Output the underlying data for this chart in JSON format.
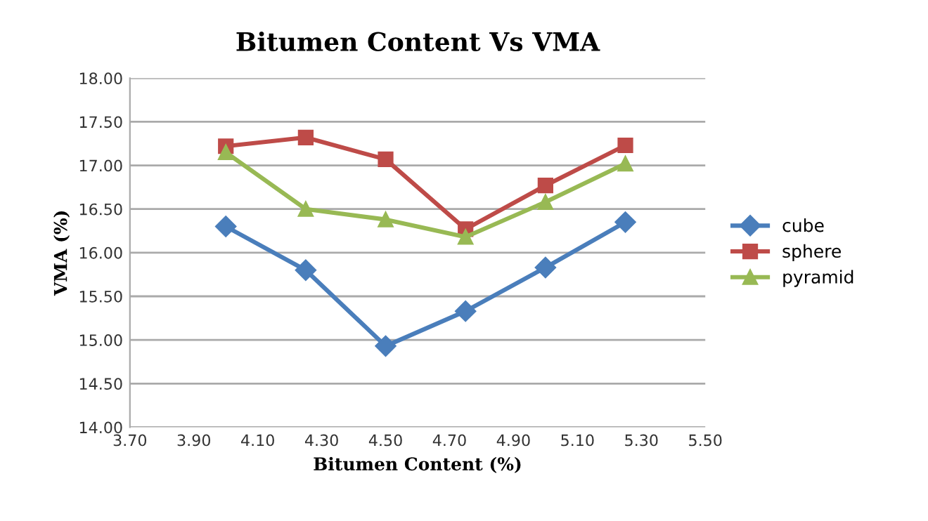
{
  "chart_data": {
    "type": "line",
    "title": "Bitumen Content Vs VMA",
    "xlabel": "Bitumen Content (%)",
    "ylabel": "VMA (%)",
    "x": [
      4.0,
      4.25,
      4.5,
      4.75,
      5.0,
      5.25
    ],
    "series": [
      {
        "name": "cube",
        "color": "#4a7ebb",
        "marker": "diamond",
        "values": [
          16.3,
          15.8,
          14.93,
          15.33,
          15.83,
          16.35
        ]
      },
      {
        "name": "sphere",
        "color": "#be4b48",
        "marker": "square",
        "values": [
          17.22,
          17.32,
          17.07,
          16.27,
          16.77,
          17.23
        ]
      },
      {
        "name": "pyramid",
        "color": "#98b954",
        "marker": "triangle",
        "values": [
          17.15,
          16.5,
          16.38,
          16.18,
          16.58,
          17.02
        ]
      }
    ],
    "xlim": [
      3.7,
      5.5
    ],
    "xticks": [
      {
        "value": 3.7,
        "label": "3.70"
      },
      {
        "value": 3.9,
        "label": "3.90"
      },
      {
        "value": 4.1,
        "label": "4.10"
      },
      {
        "value": 4.3,
        "label": "4.30"
      },
      {
        "value": 4.5,
        "label": "4.50"
      },
      {
        "value": 4.7,
        "label": "4.70"
      },
      {
        "value": 4.9,
        "label": "4.90"
      },
      {
        "value": 5.1,
        "label": "5.10"
      },
      {
        "value": 5.3,
        "label": "5.30"
      },
      {
        "value": 5.5,
        "label": "5.50"
      }
    ],
    "ylim": [
      14.0,
      18.0
    ],
    "yticks": [
      {
        "value": 14.0,
        "label": "14.00"
      },
      {
        "value": 14.5,
        "label": "14.50"
      },
      {
        "value": 15.0,
        "label": "15.00"
      },
      {
        "value": 15.5,
        "label": "15.50"
      },
      {
        "value": 16.0,
        "label": "16.00"
      },
      {
        "value": 16.5,
        "label": "16.50"
      },
      {
        "value": 17.0,
        "label": "17.00"
      },
      {
        "value": 17.5,
        "label": "17.50"
      },
      {
        "value": 18.0,
        "label": "18.00"
      }
    ],
    "grid": "y",
    "legend": "right",
    "line_style": "solid"
  }
}
